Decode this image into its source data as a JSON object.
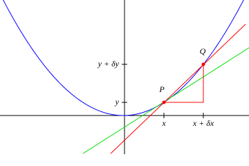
{
  "points": [
    {
      "label": "P"
    },
    {
      "label": "Q"
    }
  ],
  "x_axis_labels": [
    "x",
    "x + δx"
  ],
  "y_axis_labels": [
    "y",
    "y + δy"
  ]
}
